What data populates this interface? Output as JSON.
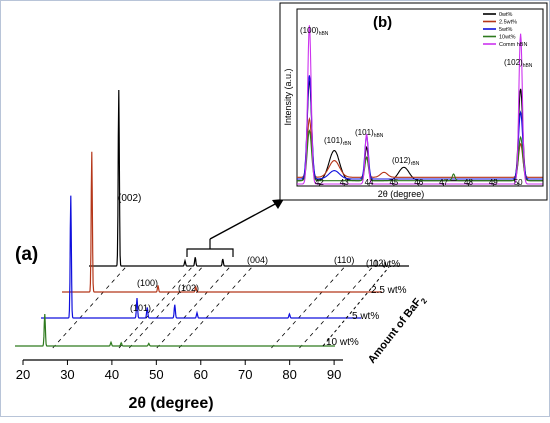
{
  "chart_data": [
    {
      "panel": "(a)",
      "type": "line",
      "xlabel": "2θ (degree)",
      "x_ticks": [
        "20",
        "30",
        "40",
        "50",
        "60",
        "70",
        "80",
        "90"
      ],
      "xlim": [
        20,
        92
      ],
      "depth_axis_label": "Amount of BaF",
      "depth_axis_subscript": "2",
      "series": [
        {
          "name": "0 wt%",
          "color": "#000000",
          "peaks": [
            {
              "x": 26.7,
              "h": 1.0
            },
            {
              "x": 41.6,
              "h": 0.03
            },
            {
              "x": 43.9,
              "h": 0.05
            },
            {
              "x": 50.1,
              "h": 0.04
            }
          ]
        },
        {
          "name": "2.5 wt%",
          "color": "#b5371a",
          "peaks": [
            {
              "x": 26.7,
              "h": 0.85
            },
            {
              "x": 41.6,
              "h": 0.04
            },
            {
              "x": 50.1,
              "h": 0.03
            }
          ]
        },
        {
          "name": "5 wt%",
          "color": "#1010dd",
          "peaks": [
            {
              "x": 26.7,
              "h": 0.92
            },
            {
              "x": 41.6,
              "h": 0.15
            },
            {
              "x": 43.9,
              "h": 0.08
            },
            {
              "x": 50.1,
              "h": 0.1
            },
            {
              "x": 55.1,
              "h": 0.04
            },
            {
              "x": 75.9,
              "h": 0.03
            }
          ]
        },
        {
          "name": "10 wt%",
          "color": "#2e7a1e",
          "peaks": [
            {
              "x": 26.7,
              "h": 0.5
            },
            {
              "x": 41.6,
              "h": 0.06
            },
            {
              "x": 43.9,
              "h": 0.05
            },
            {
              "x": 50.1,
              "h": 0.04
            }
          ]
        }
      ],
      "peak_labels": [
        "(002)",
        "(100)",
        "(101)",
        "(102)",
        "(004)",
        "(110)",
        "(112)"
      ]
    },
    {
      "panel": "(b)",
      "type": "line",
      "xlabel": "2θ (degree)",
      "ylabel": "Intensity (a.u.)",
      "x_ticks": [
        "42",
        "43",
        "44",
        "45",
        "46",
        "47",
        "48",
        "49",
        "50"
      ],
      "xlim": [
        41.1,
        51.0
      ],
      "legend": "top-right",
      "series": [
        {
          "name": "0wt%",
          "color": "#000000",
          "baseline": 0.02,
          "peaks": [
            {
              "x": 41.6,
              "h": 0.6,
              "w": 0.12
            },
            {
              "x": 42.6,
              "h": 0.18,
              "w": 0.3
            },
            {
              "x": 43.9,
              "h": 0.2,
              "w": 0.1
            },
            {
              "x": 45.4,
              "h": 0.08,
              "w": 0.3
            },
            {
              "x": 50.1,
              "h": 0.55,
              "w": 0.12
            }
          ]
        },
        {
          "name": "2.5wt%",
          "color": "#b5371a",
          "baseline": 0.04,
          "peaks": [
            {
              "x": 41.6,
              "h": 0.35,
              "w": 0.12
            },
            {
              "x": 42.6,
              "h": 0.1,
              "w": 0.3
            },
            {
              "x": 43.9,
              "h": 0.12,
              "w": 0.1
            },
            {
              "x": 44.6,
              "h": 0.03,
              "w": 0.2
            },
            {
              "x": 50.1,
              "h": 0.2,
              "w": 0.12
            }
          ]
        },
        {
          "name": "5wt%",
          "color": "#1010dd",
          "baseline": 0.03,
          "peaks": [
            {
              "x": 41.6,
              "h": 0.62,
              "w": 0.12
            },
            {
              "x": 42.6,
              "h": 0.05,
              "w": 0.3
            },
            {
              "x": 43.9,
              "h": 0.26,
              "w": 0.1
            },
            {
              "x": 50.1,
              "h": 0.4,
              "w": 0.12
            }
          ]
        },
        {
          "name": "10wt%",
          "color": "#2e7a1e",
          "baseline": 0.02,
          "peaks": [
            {
              "x": 41.6,
              "h": 0.3,
              "w": 0.12
            },
            {
              "x": 43.9,
              "h": 0.14,
              "w": 0.1
            },
            {
              "x": 47.4,
              "h": 0.04,
              "w": 0.08
            },
            {
              "x": 50.1,
              "h": 0.26,
              "w": 0.12
            }
          ]
        },
        {
          "name": "Comm hBN",
          "color": "#cc33ee",
          "baseline": 0.0,
          "peaks": [
            {
              "x": 41.6,
              "h": 0.95,
              "w": 0.1
            },
            {
              "x": 43.9,
              "h": 0.3,
              "w": 0.09
            },
            {
              "x": 50.1,
              "h": 0.9,
              "w": 0.1
            }
          ]
        }
      ],
      "peak_labels": [
        {
          "text": "(100)",
          "sub": "hBN"
        },
        {
          "text": "(101)",
          "sub": "rBN"
        },
        {
          "text": "(101)",
          "sub": "hBN"
        },
        {
          "text": "(012)",
          "sub": "rBN"
        },
        {
          "text": "(102)",
          "sub": "hBN"
        }
      ]
    }
  ],
  "figure_labels": {
    "wt_labels": [
      "0 wt%",
      "2.5 wt%",
      "5 wt%",
      "10 wt%"
    ]
  }
}
